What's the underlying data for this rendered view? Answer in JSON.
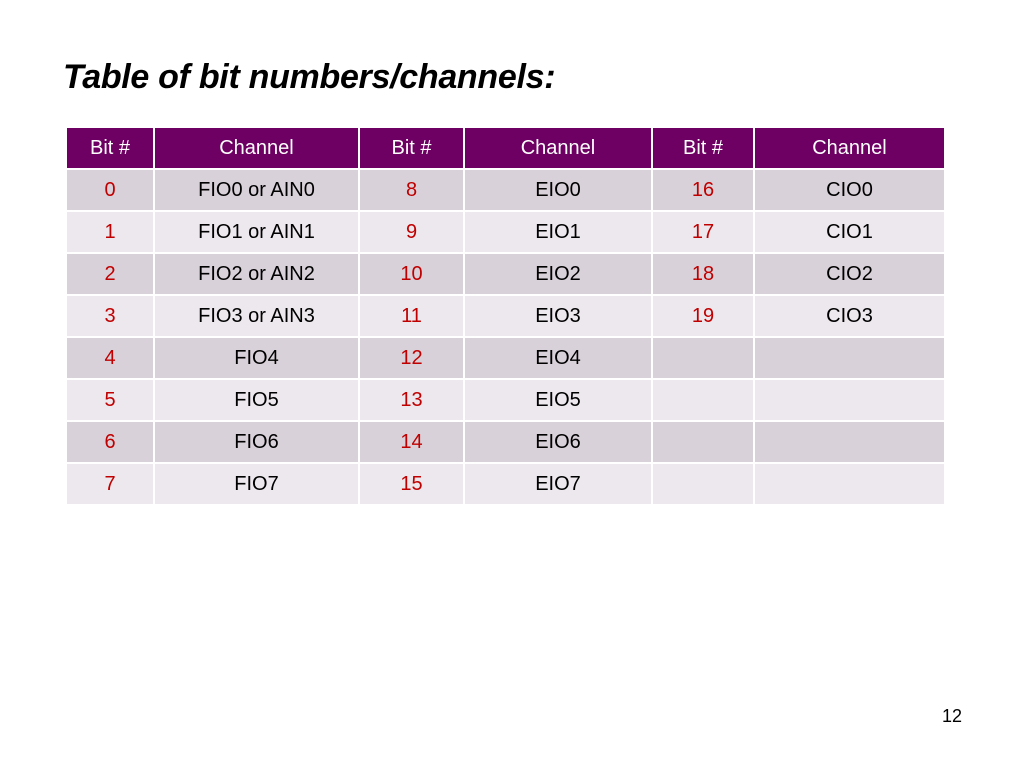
{
  "slide": {
    "title": "Table of bit numbers/channels:",
    "page_number": "12"
  },
  "colors": {
    "header_background": "#6d0062",
    "header_text": "#ffffff",
    "row_dark": "#d9d1d9",
    "row_light": "#ede8ee",
    "bit_text": "#c00000",
    "channel_text": "#000000"
  },
  "table": {
    "headers": [
      "Bit #",
      "Channel",
      "Bit #",
      "Channel",
      "Bit #",
      "Channel"
    ],
    "rows": [
      [
        "0",
        "FIO0 or AIN0",
        "8",
        "EIO0",
        "16",
        "CIO0"
      ],
      [
        "1",
        "FIO1 or AIN1",
        "9",
        "EIO1",
        "17",
        "CIO1"
      ],
      [
        "2",
        "FIO2 or AIN2",
        "10",
        "EIO2",
        "18",
        "CIO2"
      ],
      [
        "3",
        "FIO3 or AIN3",
        "11",
        "EIO3",
        "19",
        "CIO3"
      ],
      [
        "4",
        "FIO4",
        "12",
        "EIO4",
        "",
        ""
      ],
      [
        "5",
        "FIO5",
        "13",
        "EIO5",
        "",
        ""
      ],
      [
        "6",
        "FIO6",
        "14",
        "EIO6",
        "",
        ""
      ],
      [
        "7",
        "FIO7",
        "15",
        "EIO7",
        "",
        ""
      ]
    ]
  }
}
